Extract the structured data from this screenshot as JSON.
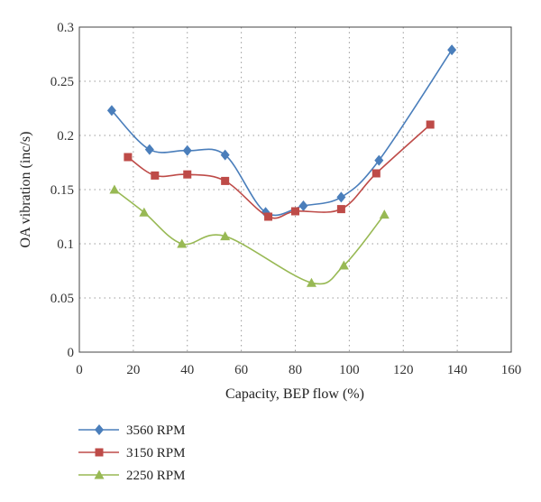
{
  "chart_data": {
    "type": "line",
    "title": "",
    "xlabel": "Capacity, BEP flow (%)",
    "ylabel": "OA vibration (inc/s)",
    "xlim": [
      0,
      160
    ],
    "ylim": [
      0,
      0.3
    ],
    "x_ticks": [
      "0",
      "20",
      "40",
      "60",
      "80",
      "100",
      "120",
      "140",
      "160"
    ],
    "y_ticks": [
      "0",
      "0.05",
      "0.1",
      "0.15",
      "0.2",
      "0.25",
      "0.3"
    ],
    "grid": true,
    "smooth": true,
    "legend_position": "bottom-left",
    "series": [
      {
        "name": "3560 RPM",
        "color": "#4a7ebb",
        "marker": "diamond",
        "x": [
          12,
          26,
          40,
          54,
          69,
          83,
          97,
          111,
          138
        ],
        "y": [
          0.223,
          0.187,
          0.186,
          0.182,
          0.129,
          0.135,
          0.143,
          0.177,
          0.279
        ]
      },
      {
        "name": "3150 RPM",
        "color": "#be4b48",
        "marker": "square",
        "x": [
          18,
          28,
          40,
          54,
          70,
          80,
          97,
          110,
          130
        ],
        "y": [
          0.18,
          0.163,
          0.164,
          0.158,
          0.125,
          0.13,
          0.132,
          0.165,
          0.21
        ]
      },
      {
        "name": "2250 RPM",
        "color": "#98b954",
        "marker": "triangle",
        "x": [
          13,
          24,
          38,
          54,
          86,
          98,
          113
        ],
        "y": [
          0.15,
          0.129,
          0.1,
          0.107,
          0.064,
          0.08,
          0.127
        ]
      }
    ]
  }
}
